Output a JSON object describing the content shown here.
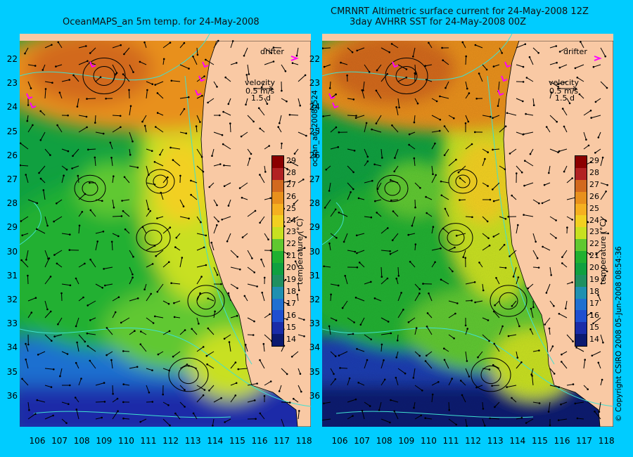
{
  "left_title": "OceanMAPS_an 5m temp. for 24-May-2008",
  "right_title_line1": "CMRNRT Altimetric surface current for 24-May-2008 12Z",
  "right_title_line2": "3day AVHRR SST for 24-May-2008 00Z",
  "side_label_left": "ocean_an_20080524",
  "side_label_right": "© Copyright CSIRO 2008   05-Jun-2008 08:54:36",
  "legend": {
    "drifter": "drifter",
    "velocity": "velocity",
    "speed": "0.5 m/s",
    "duration": "1.5 d"
  },
  "colorbar": {
    "title": "temperature (°C)",
    "ticks": [
      "29",
      "28",
      "27",
      "26",
      "25",
      "24",
      "23",
      "22",
      "21",
      "20",
      "19",
      "18",
      "17",
      "16",
      "15",
      "14"
    ],
    "colors": [
      "#8b0000",
      "#b22222",
      "#d2691e",
      "#e8901c",
      "#f5b020",
      "#f2d020",
      "#c8e020",
      "#60c830",
      "#20b030",
      "#10a040",
      "#209060",
      "#2090b0",
      "#2070d0",
      "#1f4fd0",
      "#1a2ca8",
      "#0c1a70"
    ]
  },
  "lat_labels": [
    "22",
    "23",
    "24",
    "25",
    "26",
    "27",
    "28",
    "29",
    "30",
    "31",
    "32",
    "33",
    "34",
    "35",
    "36"
  ],
  "lon_labels": [
    "106",
    "107",
    "108",
    "109",
    "110",
    "111",
    "112",
    "113",
    "114",
    "115",
    "116",
    "117",
    "118"
  ],
  "colors": {
    "land": "#f9c9a4",
    "background": "#00ccff",
    "contour": "#40e0d0",
    "drifter": "#ff00ff"
  }
}
